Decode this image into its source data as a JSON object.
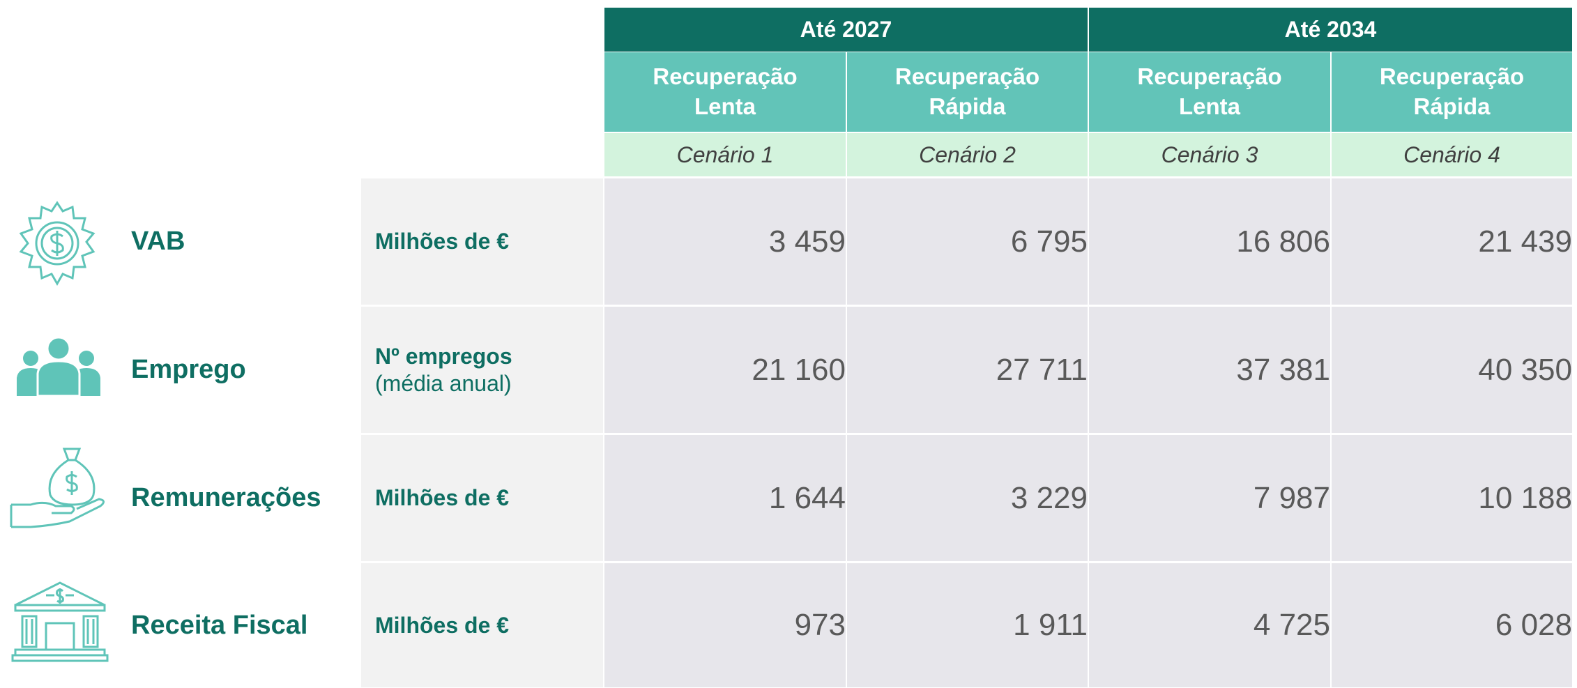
{
  "header": {
    "groups": [
      "Até 2027",
      "Até 2034"
    ],
    "scenarios": [
      {
        "line1": "Recuperação",
        "line2": "Lenta",
        "label": "Cenário 1"
      },
      {
        "line1": "Recuperação",
        "line2": "Rápida",
        "label": "Cenário 2"
      },
      {
        "line1": "Recuperação",
        "line2": "Lenta",
        "label": "Cenário 3"
      },
      {
        "line1": "Recuperação",
        "line2": "Rápida",
        "label": "Cenário 4"
      }
    ]
  },
  "rows": [
    {
      "label": "VAB",
      "unit": "Milhões de €",
      "values": [
        "3 459",
        "6 795",
        "16 806",
        "21 439"
      ]
    },
    {
      "label": "Emprego",
      "unit": "Nº empregos",
      "unit_note": "(média anual)",
      "values": [
        "21 160",
        "27 711",
        "37 381",
        "40 350"
      ]
    },
    {
      "label": "Remunerações",
      "unit": "Milhões de €",
      "values": [
        "1 644",
        "3 229",
        "7 987",
        "10 188"
      ]
    },
    {
      "label": "Receita Fiscal",
      "unit": "Milhões de €",
      "values": [
        "973",
        "1 911",
        "4 725",
        "6 028"
      ]
    }
  ]
}
